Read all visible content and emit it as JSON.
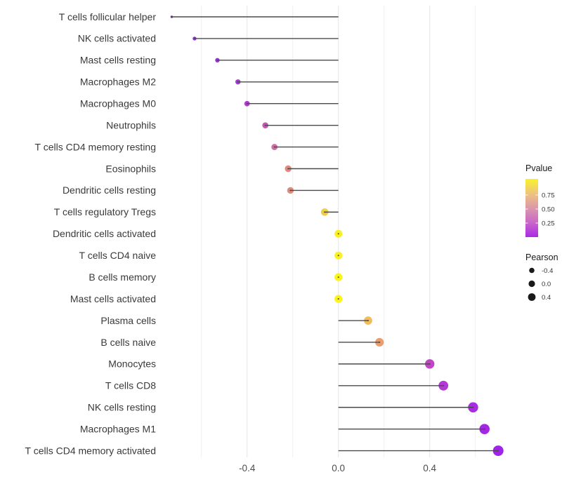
{
  "chart_data": {
    "type": "lollipop",
    "title": "",
    "x_axis": {
      "ticks": [
        {
          "label": "-0.4",
          "value": -0.4
        },
        {
          "label": "0.0",
          "value": 0.0
        },
        {
          "label": "0.4",
          "value": 0.4
        }
      ],
      "gridlines_major": [
        -0.4,
        0.0,
        0.4
      ],
      "gridlines_minor": [
        -0.6,
        -0.2,
        0.2,
        0.6
      ],
      "range": [
        -0.75,
        0.75
      ]
    },
    "baseline_value": 0,
    "rows": [
      {
        "label": "T cells follicular helper",
        "pearson": -0.73,
        "color": "#7B2BD1",
        "radius": 1.8
      },
      {
        "label": "NK cells activated",
        "pearson": -0.63,
        "color": "#9030DE",
        "radius": 2.7
      },
      {
        "label": "Mast cells resting",
        "pearson": -0.53,
        "color": "#9A34DC",
        "radius": 3.2
      },
      {
        "label": "Macrophages M2",
        "pearson": -0.44,
        "color": "#A53BD2",
        "radius": 3.7
      },
      {
        "label": "Macrophages M0",
        "pearson": -0.4,
        "color": "#AB40CC",
        "radius": 3.9
      },
      {
        "label": "Neutrophils",
        "pearson": -0.32,
        "color": "#C657B0",
        "radius": 4.3
      },
      {
        "label": "T cells CD4 memory resting",
        "pearson": -0.28,
        "color": "#CE6FA6",
        "radius": 4.4
      },
      {
        "label": "Eosinophils",
        "pearson": -0.22,
        "color": "#DE8A82",
        "radius": 4.7
      },
      {
        "label": "Dendritic cells resting",
        "pearson": -0.21,
        "color": "#DF8B7E",
        "radius": 4.7
      },
      {
        "label": "T cells regulatory  Tregs",
        "pearson": -0.06,
        "color": "#EFCE45",
        "radius": 5.3
      },
      {
        "label": "Dendritic cells activated",
        "pearson": 0.0,
        "color": "#F8F021",
        "radius": 5.5
      },
      {
        "label": "T cells CD4 naive",
        "pearson": 0.0,
        "color": "#F9F21C",
        "radius": 5.5
      },
      {
        "label": "B cells memory",
        "pearson": 0.0,
        "color": "#FAF41A",
        "radius": 5.6
      },
      {
        "label": "Mast cells activated",
        "pearson": 0.0,
        "color": "#FAF41A",
        "radius": 5.6
      },
      {
        "label": "Plasma cells",
        "pearson": 0.13,
        "color": "#F0BC5C",
        "radius": 5.9
      },
      {
        "label": "B cells naive",
        "pearson": 0.18,
        "color": "#EC9D6E",
        "radius": 6.1
      },
      {
        "label": "Monocytes",
        "pearson": 0.4,
        "color": "#C244C6",
        "radius": 6.7
      },
      {
        "label": "T cells CD8",
        "pearson": 0.46,
        "color": "#B338D6",
        "radius": 6.9
      },
      {
        "label": "NK cells resting",
        "pearson": 0.59,
        "color": "#A92BE2",
        "radius": 7.2
      },
      {
        "label": "Macrophages M1",
        "pearson": 0.64,
        "color": "#A527E6",
        "radius": 7.3
      },
      {
        "label": "T cells CD4 memory activated",
        "pearson": 0.7,
        "color": "#A123EA",
        "radius": 7.5
      }
    ],
    "legend": {
      "pvalue": {
        "title": "Pvalue",
        "ticks": [
          {
            "label": "0.75",
            "value": 0.75
          },
          {
            "label": "0.50",
            "value": 0.5
          },
          {
            "label": "0.25",
            "value": 0.25
          }
        ],
        "gradient_stops": [
          {
            "offset": 0.0,
            "color": "#AC29E6"
          },
          {
            "offset": 0.25,
            "color": "#C868C8"
          },
          {
            "offset": 0.5,
            "color": "#DC98AA"
          },
          {
            "offset": 0.75,
            "color": "#EFC47E"
          },
          {
            "offset": 1.0,
            "color": "#F9F22B"
          }
        ]
      },
      "pearson": {
        "title": "Pearson",
        "items": [
          {
            "label": "-0.4",
            "radius": 3.8
          },
          {
            "label": "0.0",
            "radius": 4.6
          },
          {
            "label": "0.4",
            "radius": 5.4
          }
        ],
        "dot_color": "#1A1A1A"
      }
    },
    "colors": {
      "stem": "#4A4A4A",
      "grid_major": "#E4E4E4",
      "grid_minor": "#F0F0F0",
      "axis_text": "#3A3A3A",
      "tick_text": "#4D4D4D",
      "legend_text": "#333333",
      "legend_title": "#1A1A1A",
      "background": "#FFFFFF"
    }
  }
}
